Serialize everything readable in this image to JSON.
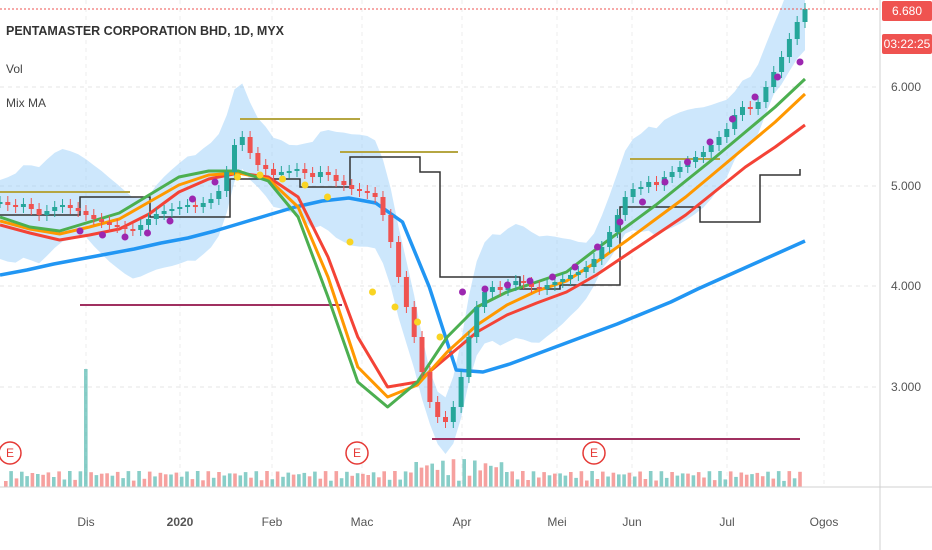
{
  "header": {
    "title": "PENTAMASTER CORPORATION BHD, 1D, MYX",
    "indicator_vol": "Vol",
    "indicator_mix": "Mix MA"
  },
  "price_tags": {
    "last_price": "6.680",
    "countdown": "03:22:25"
  },
  "colors": {
    "up": "#26a69a",
    "down": "#ef5350",
    "ma_blue": "#2196f3",
    "ma_red": "#f44336",
    "ma_orange": "#ff9800",
    "ma_green": "#4caf50",
    "psar": "#9c27b0",
    "band": "#90caf9",
    "channel": "#333333",
    "resistance": "#b5a642",
    "support": "#a03060",
    "earnings": "#e53935"
  },
  "chart_data": {
    "type": "line",
    "title": "PENTAMASTER CORPORATION BHD, 1D, MYX",
    "x_ticks": [
      "Dis",
      "2020",
      "Feb",
      "Mac",
      "Apr",
      "Mei",
      "Jun",
      "Jul",
      "Ogos"
    ],
    "y_ticks": [
      "6.000",
      "5.000",
      "4.000",
      "3.000"
    ],
    "ylim": [
      2.0,
      6.8
    ],
    "grid": true,
    "last_price": 6.68,
    "earnings_markers": [
      "E",
      "E",
      "E"
    ],
    "close_series": [
      4.75,
      4.72,
      4.7,
      4.73,
      4.68,
      4.62,
      4.66,
      4.7,
      4.72,
      4.69,
      4.66,
      4.62,
      4.58,
      4.55,
      4.52,
      4.5,
      4.48,
      4.47,
      4.52,
      4.58,
      4.63,
      4.66,
      4.68,
      4.7,
      4.72,
      4.7,
      4.74,
      4.78,
      4.86,
      5.05,
      5.32,
      5.4,
      5.24,
      5.12,
      5.08,
      5.02,
      5.05,
      5.06,
      5.08,
      5.04,
      5.0,
      5.05,
      5.02,
      4.96,
      4.92,
      4.88,
      4.86,
      4.84,
      4.8,
      4.62,
      4.35,
      4.0,
      3.7,
      3.4,
      3.05,
      2.75,
      2.6,
      2.55,
      2.7,
      3.0,
      3.4,
      3.7,
      3.85,
      3.9,
      3.87,
      3.92,
      3.96,
      3.94,
      3.9,
      3.88,
      3.92,
      3.95,
      3.98,
      4.02,
      4.05,
      4.1,
      4.18,
      4.3,
      4.45,
      4.62,
      4.8,
      4.88,
      4.9,
      4.95,
      4.92,
      5.0,
      5.05,
      5.1,
      5.15,
      5.2,
      5.25,
      5.32,
      5.4,
      5.48,
      5.62,
      5.7,
      5.68,
      5.75,
      5.9,
      6.05,
      6.2,
      6.38,
      6.55,
      6.68
    ],
    "moving_averages": [
      {
        "color_key": "ma_blue",
        "values": [
          4.02,
          4.07,
          4.13,
          4.18,
          4.23,
          4.28,
          4.34,
          4.39,
          4.46,
          4.54,
          4.62,
          4.7,
          4.76,
          4.79,
          4.74,
          4.55,
          3.9,
          3.07,
          3.05,
          3.13,
          3.23,
          3.33,
          3.43,
          3.53,
          3.64,
          3.75,
          3.88,
          4.0,
          4.12,
          4.24,
          4.36
        ]
      },
      {
        "color_key": "ma_red",
        "values": [
          4.52,
          4.44,
          4.37,
          4.42,
          4.48,
          4.63,
          4.85,
          4.98,
          5.04,
          5.0,
          4.8,
          4.2,
          3.4,
          2.9,
          2.95,
          3.2,
          3.45,
          3.62,
          3.74,
          3.85,
          4.02,
          4.22,
          4.42,
          4.62,
          4.86,
          5.1,
          5.3,
          5.52
        ]
      },
      {
        "color_key": "ma_orange",
        "values": [
          4.56,
          4.48,
          4.43,
          4.5,
          4.58,
          4.75,
          4.92,
          5.02,
          5.04,
          4.98,
          4.7,
          4.0,
          3.1,
          2.8,
          2.92,
          3.25,
          3.52,
          3.72,
          3.86,
          3.96,
          4.15,
          4.36,
          4.58,
          4.8,
          5.05,
          5.3,
          5.55,
          5.83
        ]
      },
      {
        "color_key": "ma_green",
        "values": [
          4.6,
          4.5,
          4.46,
          4.55,
          4.64,
          4.82,
          5.0,
          5.06,
          5.06,
          4.96,
          4.6,
          3.8,
          2.95,
          2.7,
          2.95,
          3.4,
          3.7,
          3.85,
          3.95,
          4.05,
          4.28,
          4.5,
          4.72,
          4.96,
          5.2,
          5.45,
          5.7,
          5.98
        ]
      }
    ],
    "psar": [
      4.46,
      4.42,
      4.4,
      4.44,
      4.56,
      4.78,
      4.95,
      5.0,
      5.02,
      4.98,
      4.92,
      4.8,
      4.35,
      3.85,
      3.7,
      3.55,
      3.4,
      3.85,
      3.88,
      3.92,
      3.96,
      4.0,
      4.1,
      4.3,
      4.55,
      4.75,
      4.95,
      5.15,
      5.35,
      5.58,
      5.8,
      6.0,
      6.15
    ]
  }
}
